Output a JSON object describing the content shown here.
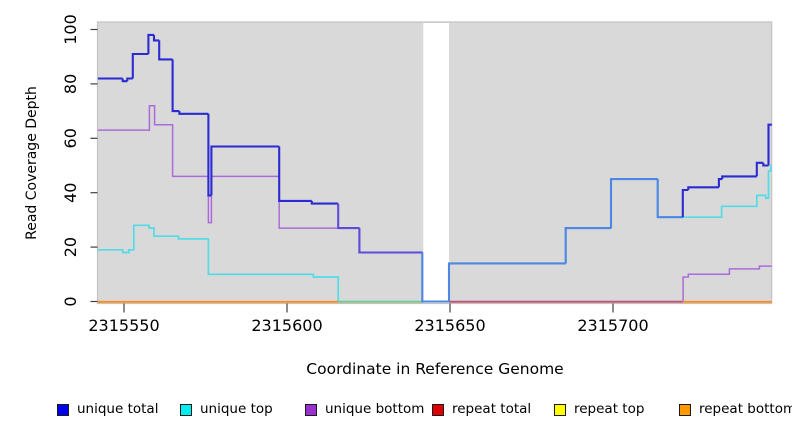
{
  "axes": {
    "x_label": "Coordinate in Reference Genome",
    "y_label": "Read Coverage Depth"
  },
  "chart_data": {
    "type": "line",
    "subtype": "step",
    "title": "",
    "xlabel": "Coordinate in Reference Genome",
    "ylabel": "Read Coverage Depth",
    "xlim": [
      2315542,
      2315748.7
    ],
    "ylim": [
      0,
      100
    ],
    "x_tick_values": [
      2315550,
      2315600,
      2315650,
      2315700
    ],
    "y_tick_values": [
      0,
      20,
      40,
      60,
      80,
      100
    ],
    "grid": false,
    "plot_background": "#d9d9d9",
    "legend_position": "bottom",
    "gap_band": {
      "from": 2315641.8,
      "to": 2315649.7,
      "color": "#ffffff"
    },
    "series": [
      {
        "name": "unique total",
        "color": "#2b2bd1",
        "overlap_with_unique_top_color": "#4d86e3",
        "overlap_with_unique_bottom_color": "#5e4bdb",
        "width": 2.1,
        "steps": [
          [
            2315542,
            82
          ],
          [
            2315549.6,
            81
          ],
          [
            2315551,
            82
          ],
          [
            2315552.7,
            91
          ],
          [
            2315557.5,
            98
          ],
          [
            2315559.2,
            96
          ],
          [
            2315560.8,
            89
          ],
          [
            2315564.9,
            70
          ],
          [
            2315567,
            69
          ],
          [
            2315575.9,
            39
          ],
          [
            2315576.8,
            57
          ],
          [
            2315597.6,
            37
          ],
          [
            2315607.6,
            36
          ],
          [
            2315615.7,
            27
          ],
          [
            2315622.2,
            18
          ],
          [
            2315641.5,
            0
          ],
          [
            2315649.7,
            14
          ],
          [
            2315685.5,
            27
          ],
          [
            2315699.4,
            45
          ],
          [
            2315713.7,
            31
          ],
          [
            2315721.4,
            41
          ],
          [
            2315723.1,
            42
          ],
          [
            2315732.5,
            45
          ],
          [
            2315733.5,
            46
          ],
          [
            2315744.1,
            51
          ],
          [
            2315746.1,
            50
          ],
          [
            2315747.7,
            65
          ]
        ]
      },
      {
        "name": "unique top",
        "color": "#52dce8",
        "width": 1.7,
        "steps": [
          [
            2315542,
            19
          ],
          [
            2315549.6,
            18
          ],
          [
            2315551.5,
            19
          ],
          [
            2315553,
            28
          ],
          [
            2315557.7,
            27
          ],
          [
            2315559.2,
            24
          ],
          [
            2315566.7,
            23
          ],
          [
            2315575.9,
            10
          ],
          [
            2315608.1,
            9
          ],
          [
            2315615.7,
            0
          ],
          [
            2315649.7,
            14
          ],
          [
            2315685.5,
            27
          ],
          [
            2315699.4,
            45
          ],
          [
            2315713.7,
            31
          ],
          [
            2315733.3,
            35
          ],
          [
            2315744.1,
            39
          ],
          [
            2315746.8,
            38
          ],
          [
            2315747.7,
            48
          ],
          [
            2315748.4,
            50
          ]
        ]
      },
      {
        "name": "unique bottom",
        "color": "#ab6cdb",
        "width": 1.5,
        "steps": [
          [
            2315542,
            63
          ],
          [
            2315557.8,
            72
          ],
          [
            2315559.4,
            65
          ],
          [
            2315564.9,
            46
          ],
          [
            2315575.9,
            29
          ],
          [
            2315576.8,
            46
          ],
          [
            2315597.6,
            27
          ],
          [
            2315622.2,
            18
          ],
          [
            2315641.5,
            0
          ],
          [
            2315721.5,
            9
          ],
          [
            2315723.1,
            10
          ],
          [
            2315735.7,
            12
          ],
          [
            2315744.9,
            13
          ]
        ]
      },
      {
        "name": "repeat total",
        "color": "#dd0000",
        "width": 1.6,
        "steps": [
          [
            2315542,
            0
          ]
        ]
      },
      {
        "name": "repeat top",
        "color": "#ffff00",
        "width": 1.6,
        "steps": [
          [
            2315542,
            0
          ]
        ]
      },
      {
        "name": "repeat bottom",
        "color": "#ff8c1a",
        "width": 1.6,
        "steps": [
          [
            2315542,
            0
          ]
        ]
      }
    ],
    "baseline_segments": [
      {
        "from": 2315542,
        "to": 2315615.7,
        "color": "#ff8c1a"
      },
      {
        "from": 2315615.7,
        "to": 2315641.5,
        "color": "#84c884"
      },
      {
        "from": 2315649.7,
        "to": 2315721.4,
        "color": "#c35571"
      },
      {
        "from": 2315721.4,
        "to": 2315748.7,
        "color": "#ff8c1a"
      }
    ]
  },
  "legend": {
    "items": [
      {
        "label": "unique total",
        "color": "#0000ee"
      },
      {
        "label": "unique top",
        "color": "#00eeee"
      },
      {
        "label": "unique bottom",
        "color": "#9b30d0"
      },
      {
        "label": "repeat total",
        "color": "#dd0000"
      },
      {
        "label": "repeat top",
        "color": "#ffff00"
      },
      {
        "label": "repeat bottom",
        "color": "#ff9900"
      }
    ]
  }
}
